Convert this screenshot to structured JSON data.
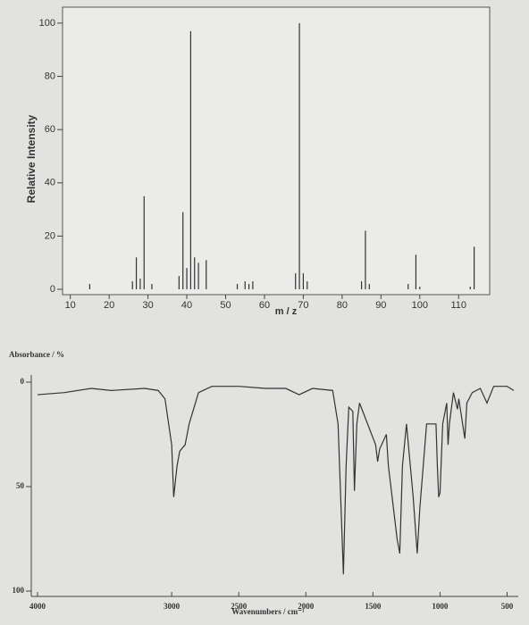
{
  "chart_data": [
    {
      "type": "bar",
      "x_label": "m / z",
      "y_label": "Relative Intensity",
      "color": "#333333",
      "x": [
        15,
        26,
        27,
        28,
        29,
        31,
        38,
        39,
        40,
        41,
        42,
        43,
        45,
        53,
        55,
        56,
        57,
        68,
        69,
        70,
        71,
        85,
        86,
        87,
        97,
        99,
        100,
        113,
        114
      ],
      "values": [
        2,
        3,
        12,
        4,
        35,
        2,
        5,
        29,
        8,
        97,
        12,
        10,
        11,
        2,
        3,
        2,
        3,
        6,
        100,
        6,
        3,
        3,
        22,
        2,
        2,
        13,
        1,
        1,
        16
      ],
      "xlim": [
        8,
        118
      ],
      "xticks": [
        10,
        20,
        30,
        40,
        50,
        60,
        70,
        80,
        90,
        100,
        110
      ],
      "ylim": [
        -2,
        106
      ],
      "yticks": [
        0,
        20,
        40,
        60,
        80,
        100
      ]
    },
    {
      "type": "line",
      "y_label": "Absorbance / %",
      "x_label": "Wavenumbers / cm⁻¹",
      "color": "#333333",
      "x": [
        4000,
        3800,
        3600,
        3450,
        3200,
        3100,
        3050,
        3000,
        2985,
        2960,
        2940,
        2900,
        2870,
        2800,
        2700,
        2500,
        2300,
        2150,
        2050,
        1950,
        1800,
        1760,
        1720,
        1700,
        1680,
        1650,
        1638,
        1620,
        1600,
        1480,
        1465,
        1450,
        1400,
        1385,
        1370,
        1320,
        1300,
        1280,
        1250,
        1200,
        1170,
        1150,
        1100,
        1030,
        1020,
        1010,
        1000,
        980,
        950,
        940,
        930,
        900,
        870,
        860,
        815,
        800,
        760,
        700,
        650,
        600,
        500,
        450
      ],
      "values": [
        6,
        5,
        3,
        4,
        3,
        4,
        8,
        30,
        55,
        40,
        33,
        30,
        20,
        5,
        2,
        2,
        3,
        3,
        6,
        3,
        4,
        20,
        92,
        40,
        12,
        14,
        52,
        20,
        10,
        30,
        38,
        32,
        25,
        40,
        48,
        75,
        82,
        40,
        20,
        55,
        82,
        60,
        20,
        20,
        40,
        55,
        53,
        20,
        10,
        30,
        20,
        5,
        13,
        8,
        27,
        10,
        5,
        3,
        10,
        2,
        2,
        4
      ],
      "xlim": [
        4000,
        450
      ],
      "xticks": [
        4000,
        3000,
        2500,
        2000,
        1500,
        1000,
        500
      ],
      "ylim": [
        100,
        0
      ],
      "yticks": [
        0,
        50,
        100
      ]
    }
  ]
}
